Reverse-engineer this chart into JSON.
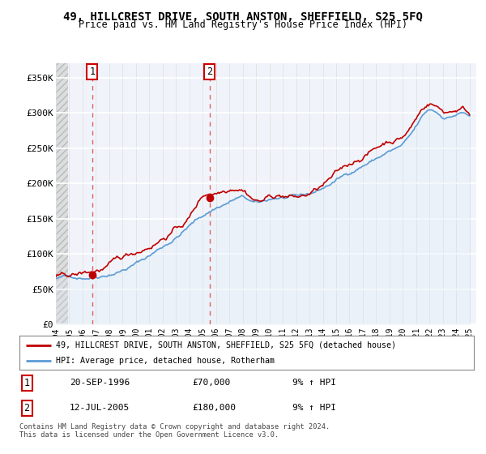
{
  "title": "49, HILLCREST DRIVE, SOUTH ANSTON, SHEFFIELD, S25 5FQ",
  "subtitle": "Price paid vs. HM Land Registry's House Price Index (HPI)",
  "legend_line1": "49, HILLCREST DRIVE, SOUTH ANSTON, SHEFFIELD, S25 5FQ (detached house)",
  "legend_line2": "HPI: Average price, detached house, Rotherham",
  "transaction1_label": "1",
  "transaction2_label": "2",
  "transaction1_date": "20-SEP-1996",
  "transaction1_price": "£70,000",
  "transaction1_hpi": "9% ↑ HPI",
  "transaction2_date": "12-JUL-2005",
  "transaction2_price": "£180,000",
  "transaction2_hpi": "9% ↑ HPI",
  "footnote": "Contains HM Land Registry data © Crown copyright and database right 2024.\nThis data is licensed under the Open Government Licence v3.0.",
  "ylim": [
    0,
    370000
  ],
  "yticks": [
    0,
    50000,
    100000,
    150000,
    200000,
    250000,
    300000,
    350000
  ],
  "ytick_labels": [
    "£0",
    "£50K",
    "£100K",
    "£150K",
    "£200K",
    "£250K",
    "£300K",
    "£350K"
  ],
  "hpi_color": "#5b9bd5",
  "price_color": "#c00000",
  "dashed_line_color": "#e06060",
  "fill_color": "#dce9f5",
  "hatch_color": "#c8c8c8",
  "marker1_x": 1996.72,
  "marker1_y": 70000,
  "marker2_x": 2005.53,
  "marker2_y": 180000,
  "xmin": 1994.0,
  "xmax": 2025.5,
  "hatch_end": 1994.9,
  "xtick_years": [
    1994,
    1995,
    1996,
    1997,
    1998,
    1999,
    2000,
    2001,
    2002,
    2003,
    2004,
    2005,
    2006,
    2007,
    2008,
    2009,
    2010,
    2011,
    2012,
    2013,
    2014,
    2015,
    2016,
    2017,
    2018,
    2019,
    2020,
    2021,
    2022,
    2023,
    2024,
    2025
  ],
  "bg_color": "#f0f4fa"
}
